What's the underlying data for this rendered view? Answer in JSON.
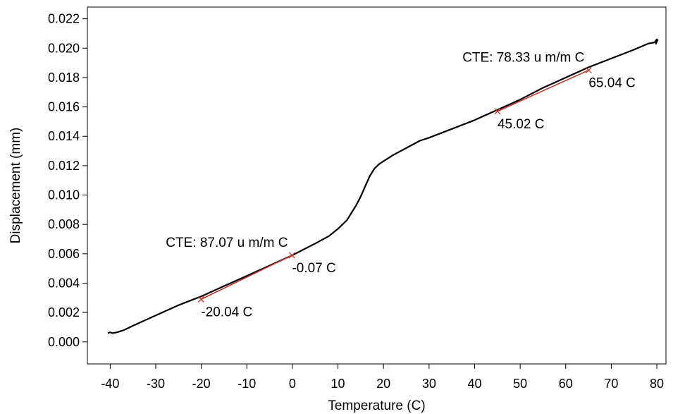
{
  "chart_data": {
    "type": "line",
    "title": "",
    "xlabel": "Temperature (C)",
    "ylabel": "Displacement (mm)",
    "xlim": [
      -45,
      82
    ],
    "ylim": [
      -0.0015,
      0.0228
    ],
    "xticks": [
      -40,
      -30,
      -20,
      -10,
      0,
      10,
      20,
      30,
      40,
      50,
      60,
      70,
      80
    ],
    "yticks": [
      0.0,
      0.002,
      0.004,
      0.006,
      0.008,
      0.01,
      0.012,
      0.014,
      0.016,
      0.018,
      0.02,
      0.022
    ],
    "xtick_labels": [
      "-40",
      "-30",
      "-20",
      "-10",
      "0",
      "10",
      "20",
      "30",
      "40",
      "50",
      "60",
      "70",
      "80"
    ],
    "ytick_labels": [
      "0.000",
      "0.002",
      "0.004",
      "0.006",
      "0.008",
      "0.010",
      "0.012",
      "0.014",
      "0.016",
      "0.018",
      "0.020",
      "0.022"
    ],
    "grid": false,
    "line_color": "#000000",
    "fit_color": "#c0392b",
    "series": [
      {
        "x": [
          -40.5,
          -40.0,
          -39.5,
          -38.5,
          -37,
          -35,
          -30,
          -25,
          -20,
          -15,
          -10,
          -5,
          0,
          5,
          8,
          10,
          12,
          13,
          14,
          15,
          16,
          17,
          18,
          19,
          20,
          22,
          25,
          28,
          30,
          35,
          40,
          45,
          50,
          55,
          60,
          65,
          70,
          75,
          78,
          79.5,
          80.0,
          79.8,
          80.2
        ],
        "y": [
          0.0006,
          0.00065,
          0.0006,
          0.00065,
          0.0008,
          0.0011,
          0.0018,
          0.0025,
          0.0031,
          0.0038,
          0.0045,
          0.0052,
          0.0059,
          0.0067,
          0.0072,
          0.0077,
          0.0083,
          0.0088,
          0.0093,
          0.0099,
          0.0106,
          0.0113,
          0.0118,
          0.0121,
          0.0123,
          0.0127,
          0.0132,
          0.0137,
          0.0139,
          0.0145,
          0.0151,
          0.0158,
          0.0165,
          0.0173,
          0.018,
          0.0187,
          0.0193,
          0.0199,
          0.0203,
          0.0204,
          0.0206,
          0.0203,
          0.0206
        ]
      }
    ],
    "fits": [
      {
        "label": "CTE: 87.07 u m/m C",
        "start": {
          "x": -20.04,
          "y": 0.0029,
          "label": "-20.04 C"
        },
        "end": {
          "x": -0.07,
          "y": 0.0059,
          "label": "-0.07 C"
        }
      },
      {
        "label": "CTE: 78.33 u m/m C",
        "start": {
          "x": 45.02,
          "y": 0.0157,
          "label": "45.02 C"
        },
        "end": {
          "x": 65.04,
          "y": 0.0185,
          "label": "65.04 C"
        }
      }
    ]
  }
}
